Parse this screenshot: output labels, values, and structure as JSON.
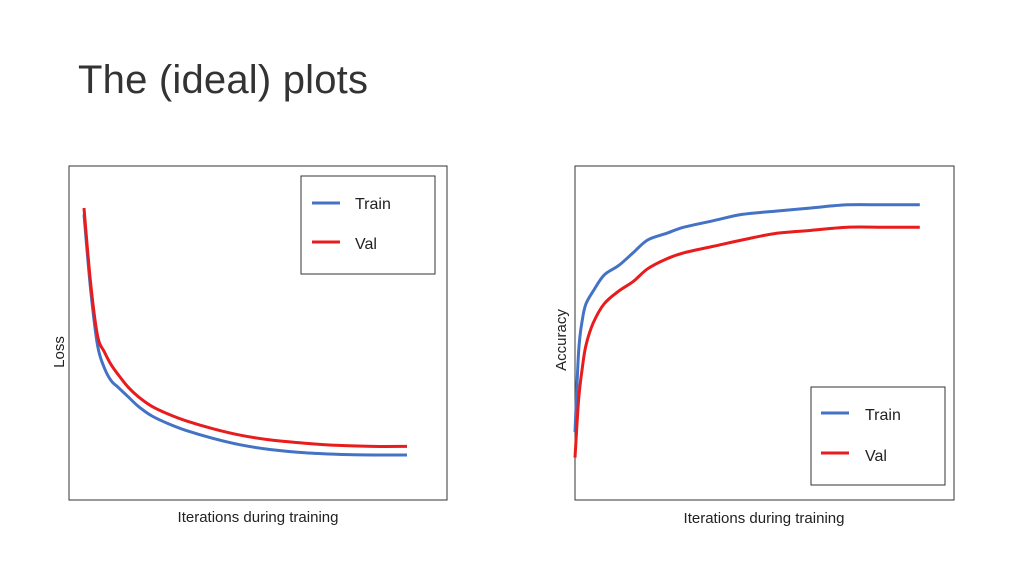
{
  "slide": {
    "title": "The (ideal) plots"
  },
  "colors": {
    "train": "#4472C4",
    "val": "#E81C1C"
  },
  "chart_data": [
    {
      "type": "line",
      "title": "",
      "xlabel": "Iterations during training",
      "ylabel": "Loss",
      "grid": false,
      "legend": "top-right",
      "xlim": [
        0,
        100
      ],
      "ylim": [
        0,
        100
      ],
      "series": [
        {
          "name": "Train",
          "x": [
            0,
            2,
            4,
            6,
            8,
            10,
            13,
            16,
            20,
            25,
            30,
            38,
            46,
            55,
            65,
            75,
            85,
            95
          ],
          "y": [
            88,
            64,
            47,
            40,
            36,
            34,
            31,
            28,
            25,
            22.5,
            20.5,
            18,
            16,
            14.5,
            13.5,
            13,
            12.8,
            12.8
          ]
        },
        {
          "name": "Val",
          "x": [
            0,
            2,
            4,
            6,
            8,
            10,
            13,
            16,
            20,
            25,
            30,
            38,
            46,
            55,
            65,
            75,
            85,
            95
          ],
          "y": [
            90,
            66,
            50,
            45,
            41,
            38,
            34,
            31,
            28,
            25.5,
            23.5,
            21,
            19,
            17.5,
            16.5,
            15.8,
            15.5,
            15.5
          ]
        }
      ]
    },
    {
      "type": "line",
      "title": "",
      "xlabel": "Iterations during training",
      "ylabel": "Accuracy",
      "grid": false,
      "legend": "bottom-right",
      "xlim": [
        0,
        100
      ],
      "ylim": [
        0,
        100
      ],
      "series": [
        {
          "name": "Train",
          "x": [
            0,
            1,
            2,
            3,
            5,
            8,
            12,
            16,
            20,
            25,
            30,
            38,
            46,
            55,
            65,
            75,
            85,
            95
          ],
          "y": [
            20,
            45,
            55,
            60,
            64,
            69,
            72,
            76,
            80,
            82,
            84,
            86,
            88,
            89,
            90,
            91,
            91,
            91
          ]
        },
        {
          "name": "Val",
          "x": [
            0,
            1,
            2,
            3,
            5,
            8,
            12,
            16,
            20,
            25,
            30,
            38,
            46,
            55,
            65,
            75,
            85,
            95
          ],
          "y": [
            12,
            30,
            40,
            47,
            54,
            60,
            64,
            67,
            71,
            74,
            76,
            78,
            80,
            82,
            83,
            84,
            84,
            84
          ]
        }
      ]
    }
  ]
}
